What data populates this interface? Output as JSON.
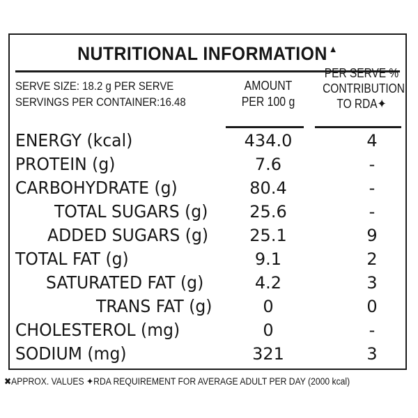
{
  "label": {
    "title": "NUTRITIONAL INFORMATION",
    "title_mark": "✖",
    "serve_size": "SERVE SIZE: 18.2 g PER SERVE",
    "servings": "SERVINGS PER CONTAINER:16.48",
    "amount_header_1": "AMOUNT",
    "amount_header_2": "PER 100 g",
    "rda_header_1": "PER SERVE %",
    "rda_header_2": "CONTRIBUTION",
    "rda_header_3": "TO RDA✦",
    "rows": [
      {
        "label": "ENERGY (kcal)",
        "amount": "434.0",
        "rda": "4"
      },
      {
        "label": "PROTEIN (g)",
        "amount": "7.6",
        "rda": "-"
      },
      {
        "label": "CARBOHYDRATE (g)",
        "amount": "80.4",
        "rda": "-"
      },
      {
        "label": "TOTAL SUGARS (g)",
        "amount": "25.6",
        "rda": "-"
      },
      {
        "label": "ADDED SUGARS (g)",
        "amount": "25.1",
        "rda": "9"
      },
      {
        "label": "TOTAL FAT (g)",
        "amount": "9.1",
        "rda": "2"
      },
      {
        "label": "SATURATED FAT (g)",
        "amount": "4.2",
        "rda": "3"
      },
      {
        "label": "TRANS FAT (g)",
        "amount": "0",
        "rda": "0"
      },
      {
        "label": "CHOLESTEROL (mg)",
        "amount": "0",
        "rda": "-"
      },
      {
        "label": "SODIUM (mg)",
        "amount": "321",
        "rda": "3"
      }
    ],
    "footnote": "✖APPROX. VALUES ✦RDA REQUIREMENT FOR AVERAGE ADULT PER DAY (2000 kcal)"
  }
}
